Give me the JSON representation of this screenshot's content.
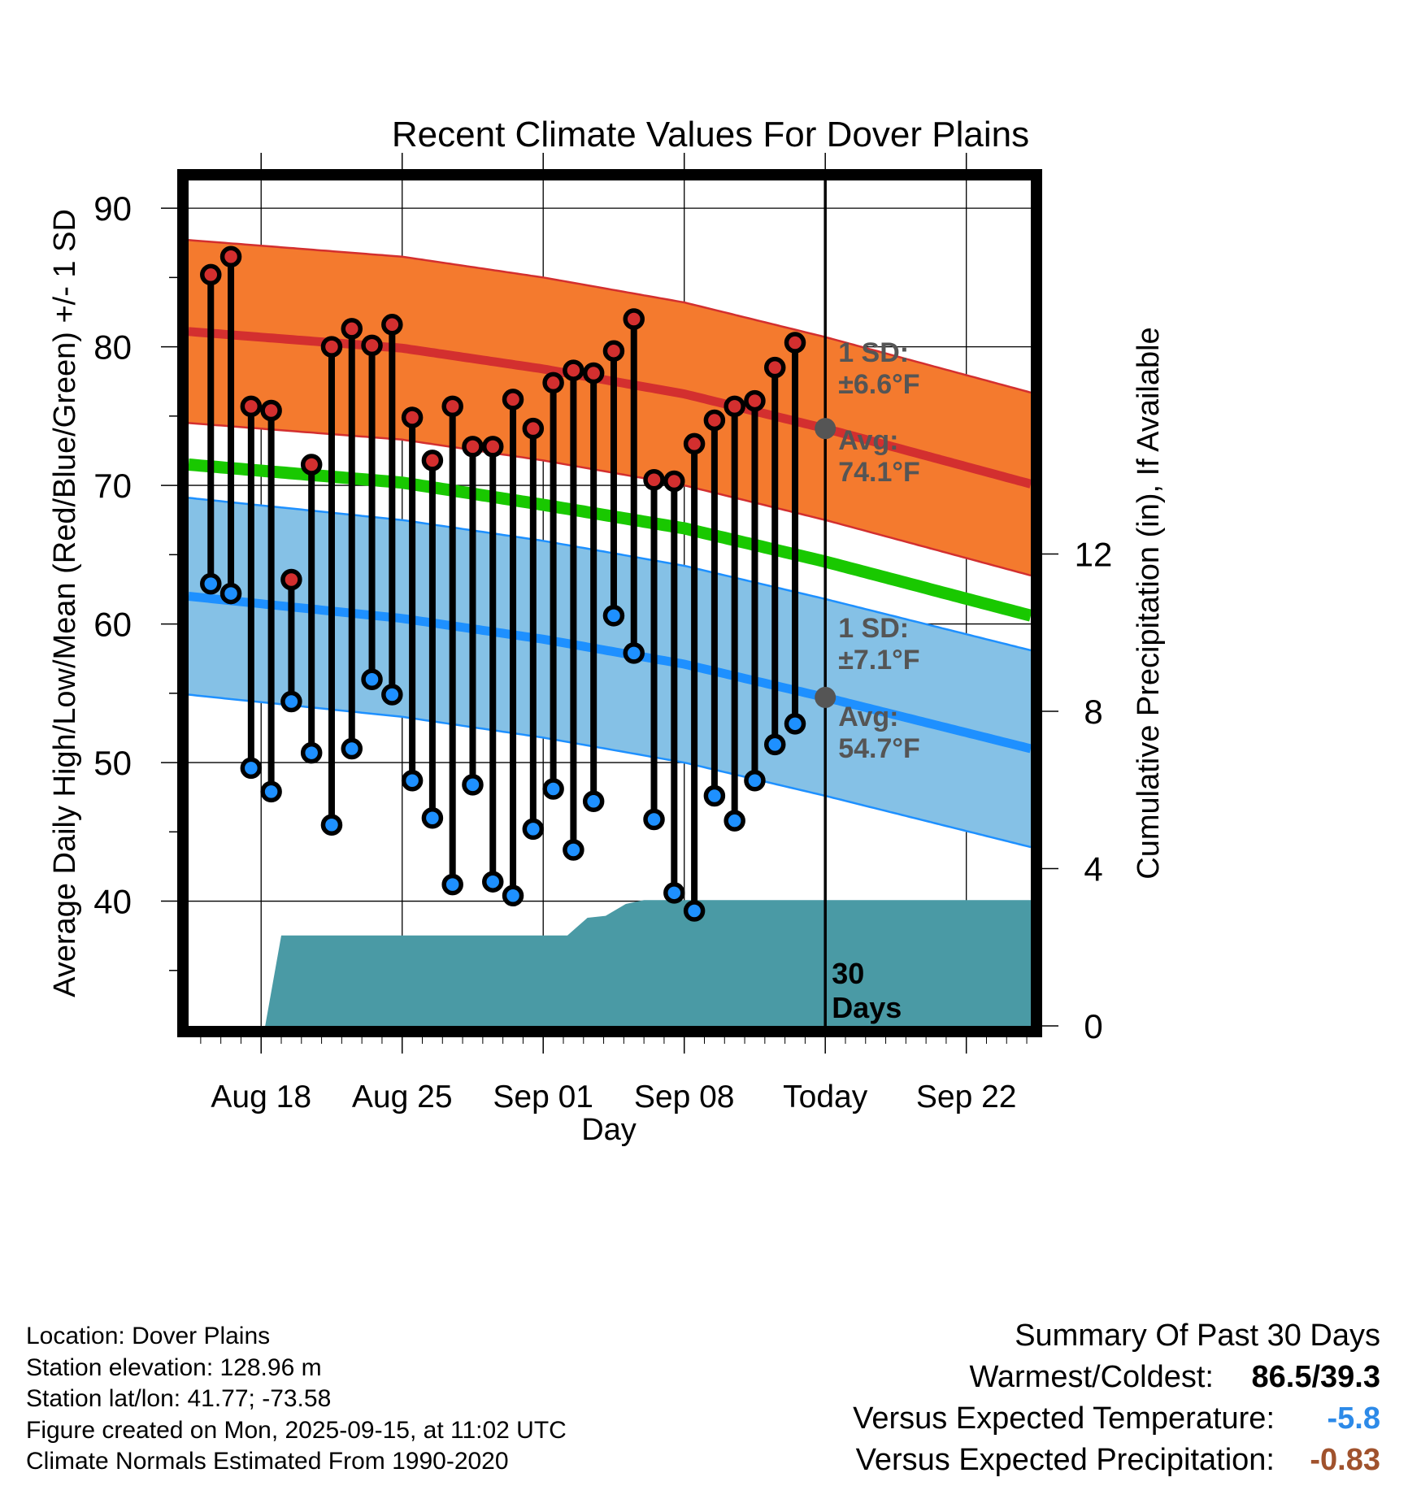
{
  "chart_data": {
    "type": "line",
    "title": "Recent Climate Values For Dover Plains",
    "xlabel": "Day",
    "ylabel": "Average Daily High/Low/Mean (Red/Blue/Green) +/- 1 SD",
    "y2label": "Cumulative Precipitation (in), If Available",
    "ylim": [
      31,
      92
    ],
    "y2lim": [
      0,
      21.5
    ],
    "xlim": [
      -0.6,
      41.2
    ],
    "yticks": [
      40,
      50,
      60,
      70,
      80,
      90
    ],
    "y2ticks": [
      0,
      4,
      8,
      12
    ],
    "xticks": [
      {
        "day": 3,
        "label": "Aug 18"
      },
      {
        "day": 10,
        "label": "Aug 25"
      },
      {
        "day": 17,
        "label": "Sep 01"
      },
      {
        "day": 24,
        "label": "Sep 08"
      },
      {
        "day": 31,
        "label": "Today"
      },
      {
        "day": 38,
        "label": "Sep 22"
      }
    ],
    "normals": {
      "high_avg": [
        [
          -0.6,
          81.1
        ],
        [
          10,
          79.9
        ],
        [
          17,
          78.4
        ],
        [
          24,
          76.6
        ],
        [
          31,
          74.1
        ],
        [
          41.2,
          70.1
        ]
      ],
      "high_sd": 6.6,
      "low_avg": [
        [
          -0.6,
          62.0
        ],
        [
          10,
          60.4
        ],
        [
          17,
          58.9
        ],
        [
          24,
          57.1
        ],
        [
          31,
          54.7
        ],
        [
          41.2,
          51.0
        ]
      ],
      "low_sd": 7.1,
      "mean_avg": [
        [
          -0.6,
          71.5
        ],
        [
          10,
          70.2
        ],
        [
          17,
          68.6
        ],
        [
          24,
          66.9
        ],
        [
          31,
          64.5
        ],
        [
          41.2,
          60.6
        ]
      ]
    },
    "series": [
      {
        "name": "Daily High",
        "color": "#d32f2f",
        "values": [
          85.2,
          86.5,
          75.7,
          75.4,
          63.2,
          71.5,
          80.0,
          81.3,
          80.1,
          81.6,
          74.9,
          71.8,
          75.7,
          72.8,
          72.8,
          76.2,
          74.1,
          77.4,
          78.3,
          78.1,
          79.7,
          82.0,
          70.4,
          70.3,
          73.0,
          74.7,
          75.7,
          76.1,
          78.5,
          80.3
        ]
      },
      {
        "name": "Daily Low",
        "color": "#1e90ff",
        "values": [
          62.9,
          62.2,
          49.6,
          47.9,
          54.4,
          50.7,
          45.5,
          51.0,
          56.0,
          54.9,
          48.7,
          46.0,
          41.2,
          48.4,
          41.4,
          40.4,
          45.2,
          48.1,
          43.7,
          47.2,
          60.6,
          57.9,
          45.9,
          40.6,
          39.3,
          47.6,
          45.8,
          48.7,
          51.3,
          52.8
        ]
      }
    ],
    "precipitation": {
      "name": "Cumulative Precipitation",
      "color": "#4a9aa5",
      "points": [
        [
          3.2,
          0
        ],
        [
          4,
          2.3
        ],
        [
          18.2,
          2.3
        ],
        [
          19.2,
          2.75
        ],
        [
          20.1,
          2.8
        ],
        [
          21.1,
          3.1
        ],
        [
          22,
          3.2
        ],
        [
          41.2,
          3.2
        ]
      ]
    },
    "today_day": 31,
    "annotations": {
      "high_sd_label": "1 SD:",
      "high_sd_value": "±6.6°F",
      "high_avg_label": "Avg:",
      "high_avg_value": "74.1°F",
      "low_sd_label": "1 SD:",
      "low_sd_value": "±7.1°F",
      "low_avg_label": "Avg:",
      "low_avg_value": "54.7°F",
      "days_number": "30",
      "days_word": "Days"
    }
  },
  "footer": {
    "location": "Location: Dover Plains",
    "elevation": "Station elevation: 128.96 m",
    "latlon": "Station lat/lon: 41.77; -73.58",
    "created": "Figure created on Mon, 2025-09-15, at 11:02 UTC",
    "normals_period": "Climate Normals Estimated From 1990-2020"
  },
  "summary": {
    "heading": "Summary Of Past 30 Days",
    "warmest_coldest_label": "Warmest/Coldest:",
    "warmest_coldest_value": "86.5/39.3",
    "temp_label": "Versus Expected Temperature:",
    "temp_value": "-5.8",
    "temp_color": "#2d8ae8",
    "precip_label": "Versus Expected Precipitation:",
    "precip_value": "-0.83",
    "precip_color": "#a0522d"
  }
}
